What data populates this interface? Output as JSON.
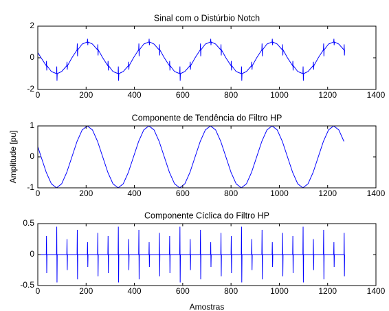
{
  "chart_data": [
    {
      "type": "line",
      "title": "Sinal com o Distúrbio Notch",
      "color": "#0000ff",
      "xlim": [
        0,
        1400
      ],
      "xticks": [
        0,
        200,
        400,
        600,
        800,
        1000,
        1200,
        1400
      ],
      "ylim": [
        -2,
        2
      ],
      "yticks": [
        -2,
        0,
        2
      ],
      "x": [
        0,
        13.75,
        35,
        36,
        37,
        38,
        56.25,
        77.5,
        78.5,
        79.5,
        80.5,
        98.75,
        120,
        121,
        122,
        123,
        141.25,
        162.5,
        163.5,
        164.5,
        165.5,
        183.75,
        205,
        206,
        207,
        208,
        226.25,
        247.5,
        248.5,
        249.5,
        250.5,
        268.75,
        290,
        291,
        292,
        293,
        311.25,
        332.5,
        333.5,
        334.5,
        335.5,
        353.75,
        375,
        376,
        377,
        378,
        396.25,
        417.5,
        418.5,
        419.5,
        420.5,
        438.75,
        460,
        461,
        462,
        463,
        481.25,
        502.5,
        503.5,
        504.5,
        505.5,
        523.75,
        545,
        546,
        547,
        548,
        566.25,
        587.5,
        588.5,
        589.5,
        590.5,
        608.75,
        630,
        631,
        632,
        633,
        651.25,
        672.5,
        673.5,
        674.5,
        675.5,
        693.75,
        715,
        716,
        717,
        718,
        736.25,
        757.5,
        758.5,
        759.5,
        760.5,
        778.75,
        800,
        801,
        802,
        803,
        821.25,
        842.5,
        843.5,
        844.5,
        845.5,
        863.75,
        885,
        886,
        887,
        888,
        906.25,
        927.5,
        928.5,
        929.5,
        930.5,
        948.75,
        970,
        971,
        972,
        973,
        991.25,
        1012.5,
        1013.5,
        1014.5,
        1015.5,
        1033.75,
        1055,
        1056,
        1057,
        1058,
        1076.25,
        1097.5,
        1098.5,
        1099.5,
        1100.5,
        1118.75,
        1140,
        1141,
        1142,
        1143,
        1161.25,
        1182.5,
        1183.5,
        1184.5,
        1185.5,
        1203.75,
        1225,
        1226,
        1227,
        1228,
        1246.25,
        1267.5,
        1268.5,
        1269.5,
        1270.5
      ],
      "values": [
        0.33,
        0,
        -0.5,
        -0.2,
        -0.8,
        -0.5,
        -0.87,
        -1,
        -0.55,
        -1.45,
        -1,
        -0.87,
        -0.5,
        -0.25,
        -0.75,
        -0.5,
        0,
        0.5,
        0.9,
        0.1,
        0.5,
        0.87,
        1,
        1.2,
        0.8,
        1,
        0.87,
        0.5,
        0.85,
        0.15,
        0.5,
        0,
        -0.5,
        -0.2,
        -0.8,
        -0.5,
        -0.87,
        -1,
        -0.55,
        -1.45,
        -1,
        -0.87,
        -0.5,
        -0.25,
        -0.75,
        -0.5,
        0,
        0.5,
        0.9,
        0.1,
        0.5,
        0.87,
        1,
        1.2,
        0.8,
        1,
        0.87,
        0.5,
        0.85,
        0.15,
        0.5,
        0,
        -0.5,
        -0.2,
        -0.8,
        -0.5,
        -0.87,
        -1,
        -0.55,
        -1.45,
        -1,
        -0.87,
        -0.5,
        -0.25,
        -0.75,
        -0.5,
        0,
        0.5,
        0.9,
        0.1,
        0.5,
        0.87,
        1,
        1.2,
        0.8,
        1,
        0.87,
        0.5,
        0.85,
        0.15,
        0.5,
        0,
        -0.5,
        -0.2,
        -0.8,
        -0.5,
        -0.87,
        -1,
        -0.55,
        -1.45,
        -1,
        -0.87,
        -0.5,
        -0.25,
        -0.75,
        -0.5,
        0,
        0.5,
        0.9,
        0.1,
        0.5,
        0.87,
        1,
        1.2,
        0.8,
        1,
        0.87,
        0.5,
        0.85,
        0.15,
        0.5,
        0,
        -0.5,
        -0.2,
        -0.8,
        -0.5,
        -0.87,
        -1,
        -0.55,
        -1.45,
        -1,
        -0.87,
        -0.5,
        -0.25,
        -0.75,
        -0.5,
        0,
        0.5,
        0.9,
        0.1,
        0.5,
        0.87,
        1,
        1.2,
        0.8,
        1,
        0.87,
        0.5,
        0.85,
        0.15,
        0.5
      ]
    },
    {
      "type": "line",
      "title": "Componente de Tendência do Filtro HP",
      "ylabel": "Amplitude [pu]",
      "color": "#0000ff",
      "xlim": [
        0,
        1400
      ],
      "xticks": [
        0,
        200,
        400,
        600,
        800,
        1000,
        1200,
        1400
      ],
      "ylim": [
        -1,
        1
      ],
      "yticks": [
        -1,
        0,
        1
      ],
      "x": [
        0,
        13.75,
        35,
        56.25,
        77.5,
        98.75,
        120,
        141.25,
        162.5,
        183.75,
        205,
        226.25,
        247.5,
        268.75,
        290,
        311.25,
        332.5,
        353.75,
        375,
        396.25,
        417.5,
        438.75,
        460,
        481.25,
        502.5,
        523.75,
        545,
        566.25,
        587.5,
        608.75,
        630,
        651.25,
        672.5,
        693.75,
        715,
        736.25,
        757.5,
        778.75,
        800,
        821.25,
        842.5,
        863.75,
        885,
        906.25,
        927.5,
        948.75,
        970,
        991.25,
        1012.5,
        1033.75,
        1055,
        1076.25,
        1097.5,
        1118.75,
        1140,
        1161.25,
        1182.5,
        1203.75,
        1225,
        1246.25,
        1267.5
      ],
      "values": [
        0.33,
        0,
        -0.5,
        -0.87,
        -1,
        -0.87,
        -0.5,
        0,
        0.5,
        0.87,
        1,
        0.87,
        0.5,
        0,
        -0.5,
        -0.87,
        -1,
        -0.87,
        -0.5,
        0,
        0.5,
        0.87,
        1,
        0.87,
        0.5,
        0,
        -0.5,
        -0.87,
        -1,
        -0.87,
        -0.5,
        0,
        0.5,
        0.87,
        1,
        0.87,
        0.5,
        0,
        -0.5,
        -0.87,
        -1,
        -0.87,
        -0.5,
        0,
        0.5,
        0.87,
        1,
        0.87,
        0.5,
        0,
        -0.5,
        -0.87,
        -1,
        -0.87,
        -0.5,
        0,
        0.5,
        0.87,
        1,
        0.87,
        0.5
      ]
    },
    {
      "type": "line",
      "title": "Componente Cíclica do Filtro HP",
      "xlabel": "Amostras",
      "color": "#0000ff",
      "xlim": [
        0,
        1400
      ],
      "xticks": [
        0,
        200,
        400,
        600,
        800,
        1000,
        1200,
        1400
      ],
      "ylim": [
        -0.5,
        0.5
      ],
      "yticks": [
        -0.5,
        0,
        0.5
      ],
      "x": [
        0,
        13.75,
        35,
        36,
        37,
        38,
        56.25,
        77.5,
        78.5,
        79.5,
        80.5,
        98.75,
        120,
        121,
        122,
        123,
        141.25,
        162.5,
        163.5,
        164.5,
        165.5,
        183.75,
        205,
        206,
        207,
        208,
        226.25,
        247.5,
        248.5,
        249.5,
        250.5,
        268.75,
        290,
        291,
        292,
        293,
        311.25,
        332.5,
        333.5,
        334.5,
        335.5,
        353.75,
        375,
        376,
        377,
        378,
        396.25,
        417.5,
        418.5,
        419.5,
        420.5,
        438.75,
        460,
        461,
        462,
        463,
        481.25,
        502.5,
        503.5,
        504.5,
        505.5,
        523.75,
        545,
        546,
        547,
        548,
        566.25,
        587.5,
        588.5,
        589.5,
        590.5,
        608.75,
        630,
        631,
        632,
        633,
        651.25,
        672.5,
        673.5,
        674.5,
        675.5,
        693.75,
        715,
        716,
        717,
        718,
        736.25,
        757.5,
        758.5,
        759.5,
        760.5,
        778.75,
        800,
        801,
        802,
        803,
        821.25,
        842.5,
        843.5,
        844.5,
        845.5,
        863.75,
        885,
        886,
        887,
        888,
        906.25,
        927.5,
        928.5,
        929.5,
        930.5,
        948.75,
        970,
        971,
        972,
        973,
        991.25,
        1012.5,
        1013.5,
        1014.5,
        1015.5,
        1033.75,
        1055,
        1056,
        1057,
        1058,
        1076.25,
        1097.5,
        1098.5,
        1099.5,
        1100.5,
        1118.75,
        1140,
        1141,
        1142,
        1143,
        1161.25,
        1182.5,
        1183.5,
        1184.5,
        1185.5,
        1203.75,
        1225,
        1226,
        1227,
        1228,
        1246.25,
        1267.5,
        1268.5,
        1269.5,
        1270.5
      ],
      "values": [
        0,
        0,
        0,
        0.3,
        -0.3,
        0,
        0,
        0,
        0.45,
        -0.45,
        0,
        0,
        0,
        0.25,
        -0.25,
        0,
        0,
        0,
        0.4,
        -0.4,
        0,
        0,
        0,
        0.2,
        -0.2,
        0,
        0,
        0,
        0.35,
        -0.35,
        0,
        0,
        0,
        0.3,
        -0.3,
        0,
        0,
        0,
        0.45,
        -0.45,
        0,
        0,
        0,
        0.25,
        -0.25,
        0,
        0,
        0,
        0.4,
        -0.4,
        0,
        0,
        0,
        0.2,
        -0.2,
        0,
        0,
        0,
        0.35,
        -0.35,
        0,
        0,
        0,
        0.3,
        -0.3,
        0,
        0,
        0,
        0.45,
        -0.45,
        0,
        0,
        0,
        0.25,
        -0.25,
        0,
        0,
        0,
        0.4,
        -0.4,
        0,
        0,
        0,
        0.2,
        -0.2,
        0,
        0,
        0,
        0.35,
        -0.35,
        0,
        0,
        0,
        0.3,
        -0.3,
        0,
        0,
        0,
        0.45,
        -0.45,
        0,
        0,
        0,
        0.25,
        -0.25,
        0,
        0,
        0,
        0.4,
        -0.4,
        0,
        0,
        0,
        0.2,
        -0.2,
        0,
        0,
        0,
        0.35,
        -0.35,
        0,
        0,
        0,
        0.3,
        -0.3,
        0,
        0,
        0,
        0.45,
        -0.45,
        0,
        0,
        0,
        0.25,
        -0.25,
        0,
        0,
        0,
        0.4,
        -0.4,
        0,
        0,
        0,
        0.2,
        -0.2,
        0,
        0,
        0,
        0.35,
        -0.35,
        0
      ]
    }
  ]
}
